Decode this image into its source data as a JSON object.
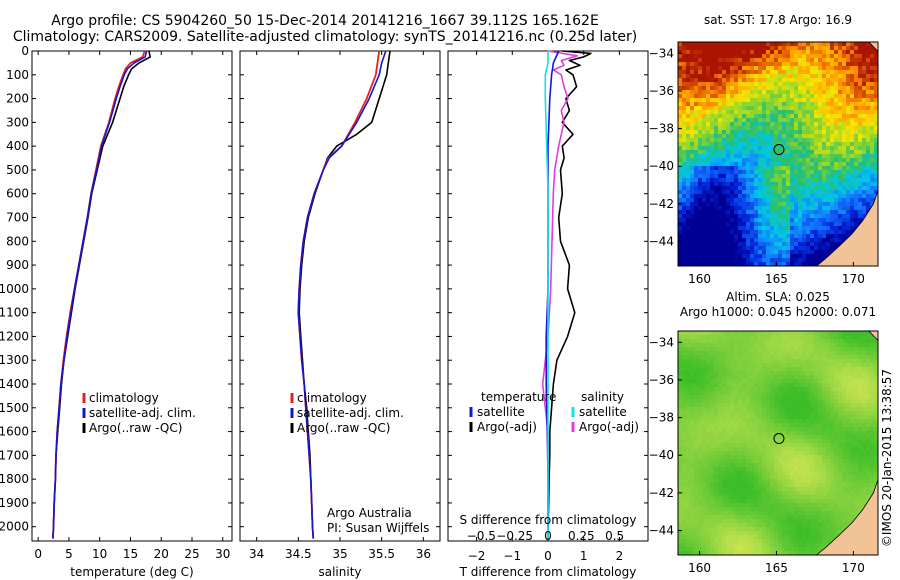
{
  "header": {
    "line1": "Argo profile: CS 5904260_50 15-Dec-2014 20141216_1667 39.112S 165.162E",
    "line2": "Climatology: CARS2009. Satellite-adjusted climatology: synTS_20141216.nc (0.25d later)"
  },
  "timestamp": "©IMOS 20-Jan-2015 13:38:57",
  "credits": {
    "line1": "Argo Australia",
    "line2": "PI: Susan Wijffels"
  },
  "colors": {
    "climatology": "#e8211d",
    "satellite": "#1515d6",
    "argo": "#000000",
    "satellite_s": "#16e0e8",
    "argo_s": "#e03ce0"
  },
  "chart_data": [
    {
      "type": "line",
      "xlabel": "temperature (deg C)",
      "ylabel": "",
      "xlim": [
        -1,
        31.5
      ],
      "ylim": [
        2060,
        0
      ],
      "xticks": [
        0,
        5,
        10,
        15,
        20,
        25,
        30
      ],
      "yticks": [
        0,
        100,
        200,
        300,
        400,
        500,
        600,
        700,
        800,
        900,
        1000,
        1100,
        1200,
        1300,
        1400,
        1500,
        1600,
        1700,
        1800,
        1900,
        2000
      ],
      "legend": [
        "climatology",
        "satellite-adj. clim.",
        "Argo(..raw -QC)"
      ],
      "series": [
        {
          "name": "climatology",
          "y": [
            0,
            25,
            50,
            75,
            100,
            150,
            200,
            300,
            400,
            500,
            600,
            700,
            800,
            900,
            1000,
            1100,
            1200,
            1300,
            1400,
            1500,
            1600,
            1700,
            1800,
            1900,
            2000,
            2050
          ],
          "x": [
            17.3,
            17.0,
            15.0,
            14.2,
            13.8,
            13.1,
            12.5,
            11.5,
            10.2,
            9.4,
            8.6,
            8.0,
            7.3,
            6.6,
            5.9,
            5.2,
            4.6,
            4.1,
            3.7,
            3.4,
            3.1,
            2.9,
            2.8,
            2.6,
            2.5,
            2.4
          ]
        },
        {
          "name": "satellite-adj. clim.",
          "y": [
            0,
            25,
            50,
            75,
            100,
            150,
            200,
            300,
            400,
            500,
            600,
            700,
            800,
            900,
            1000,
            1100,
            1200,
            1300,
            1400,
            1500,
            1600,
            1700,
            1800,
            1900,
            2000,
            2050
          ],
          "x": [
            17.6,
            17.4,
            15.6,
            14.5,
            14.0,
            13.3,
            12.7,
            11.6,
            10.3,
            9.5,
            8.6,
            8.0,
            7.3,
            6.6,
            5.9,
            5.3,
            4.7,
            4.2,
            3.7,
            3.4,
            3.1,
            2.9,
            2.8,
            2.6,
            2.5,
            2.4
          ]
        },
        {
          "name": "Argo(..raw -QC)",
          "y": [
            0,
            25,
            50,
            75,
            100,
            150,
            200,
            300,
            400,
            500,
            600,
            700,
            800,
            900,
            1000,
            1100,
            1200,
            1300,
            1400,
            1500,
            1600,
            1700,
            1800,
            1900,
            2000,
            2050
          ],
          "x": [
            18.0,
            18.2,
            16.4,
            15.2,
            14.7,
            13.9,
            13.3,
            12.1,
            10.5,
            9.6,
            8.7,
            8.1,
            7.4,
            6.7,
            6.0,
            5.4,
            4.8,
            4.2,
            3.8,
            3.5,
            3.2,
            2.9,
            2.8,
            2.6,
            2.5,
            2.4
          ]
        }
      ]
    },
    {
      "type": "line",
      "xlabel": "salinity",
      "ylabel": "",
      "xlim": [
        33.8,
        36.2
      ],
      "ylim": [
        2060,
        0
      ],
      "xticks": [
        34,
        34.5,
        35,
        35.5,
        36
      ],
      "xticklabels": [
        "34",
        "34.5",
        "35",
        "35.5",
        "36"
      ],
      "legend": [
        "climatology",
        "satellite-adj. clim.",
        "Argo(..raw -QC)"
      ],
      "series": [
        {
          "name": "climatology",
          "y": [
            0,
            50,
            100,
            200,
            300,
            400,
            450,
            500,
            600,
            700,
            800,
            900,
            1000,
            1100,
            1200,
            1300,
            1400,
            1500,
            1600,
            1700,
            1800,
            1900,
            2000,
            2050
          ],
          "x": [
            35.47,
            35.45,
            35.43,
            35.32,
            35.18,
            35.02,
            34.86,
            34.8,
            34.69,
            34.61,
            34.56,
            34.53,
            34.51,
            34.5,
            34.52,
            34.54,
            34.57,
            34.59,
            34.61,
            34.63,
            34.65,
            34.66,
            34.67,
            34.68
          ]
        },
        {
          "name": "satellite-adj. clim.",
          "y": [
            0,
            50,
            100,
            200,
            300,
            400,
            450,
            500,
            600,
            700,
            800,
            900,
            1000,
            1100,
            1200,
            1300,
            1400,
            1500,
            1600,
            1700,
            1800,
            1900,
            2000,
            2050
          ],
          "x": [
            35.55,
            35.5,
            35.47,
            35.35,
            35.2,
            35.02,
            34.87,
            34.8,
            34.69,
            34.61,
            34.56,
            34.53,
            34.51,
            34.5,
            34.52,
            34.54,
            34.57,
            34.59,
            34.61,
            34.63,
            34.65,
            34.66,
            34.67,
            34.68
          ]
        },
        {
          "name": "Argo(..raw -QC)",
          "y": [
            0,
            50,
            100,
            200,
            300,
            350,
            400,
            450,
            500,
            600,
            700,
            800,
            900,
            1000,
            1100,
            1200,
            1300,
            1400,
            1500,
            1600,
            1700,
            1800,
            1900,
            2000,
            2050
          ],
          "x": [
            35.6,
            35.58,
            35.56,
            35.47,
            35.38,
            35.2,
            34.96,
            34.85,
            34.8,
            34.7,
            34.62,
            34.57,
            34.54,
            34.52,
            34.51,
            34.53,
            34.55,
            34.57,
            34.6,
            34.62,
            34.64,
            34.65,
            34.66,
            34.67,
            34.68
          ]
        }
      ]
    },
    {
      "type": "line",
      "xlabel": "T difference from climatology",
      "xlabel2": "S difference from climatology",
      "ylabel": "",
      "xlim": [
        -2.8,
        2.8
      ],
      "ylim": [
        2060,
        0
      ],
      "xticks": [
        -2,
        -1,
        0,
        1,
        2
      ],
      "xticks_s": [
        -0.5,
        -0.25,
        0,
        0.25,
        0.5
      ],
      "xticklabels_s": [
        "−0.5",
        "−0.25",
        "0",
        "0.25",
        "0.5"
      ],
      "legend_t_title": "temperature",
      "legend_s_title": "salinity",
      "legend": [
        "satellite",
        "Argo(-adj)",
        "satellite",
        "Argo(-adj)"
      ],
      "series": [
        {
          "name": "satellite",
          "y": [
            0,
            50,
            100,
            200,
            400,
            600,
            800,
            1000,
            1200,
            1400,
            1600,
            1800,
            2000,
            2050
          ],
          "x": [
            0.3,
            0.15,
            0.1,
            0.05,
            0.0,
            0.0,
            0.0,
            0.0,
            -0.05,
            -0.05,
            -0.02,
            0.0,
            0.0,
            0.0
          ]
        },
        {
          "name": "Argo(-adj)",
          "y": [
            0,
            10,
            25,
            40,
            60,
            80,
            100,
            150,
            200,
            250,
            300,
            350,
            400,
            450,
            500,
            600,
            700,
            800,
            900,
            1000,
            1100,
            1150,
            1200,
            1300,
            1400,
            1500,
            1600,
            1700,
            1800,
            1900,
            2000
          ],
          "x": [
            0.4,
            1.2,
            1.0,
            0.6,
            0.9,
            0.5,
            0.7,
            0.8,
            0.5,
            0.6,
            0.4,
            0.7,
            0.4,
            0.45,
            0.35,
            0.4,
            0.3,
            0.35,
            0.6,
            0.55,
            0.75,
            0.65,
            0.55,
            0.25,
            0.15,
            0.1,
            0.05,
            0.05,
            0.03,
            0.02,
            0.0
          ]
        },
        {
          "name": "satellite",
          "y": [
            0,
            50,
            100,
            200,
            400,
            600,
            800,
            1000,
            1200,
            1400,
            1600,
            1800,
            2000,
            2050
          ],
          "x": [
            0.0,
            0.0,
            -0.02,
            -0.02,
            -0.01,
            0.0,
            0.0,
            0.0,
            0.0,
            0.0,
            0.0,
            0.0,
            0.0,
            0.0
          ]
        },
        {
          "name": "Argo(-adj)",
          "y": [
            0,
            20,
            40,
            60,
            80,
            100,
            150,
            200,
            250,
            300,
            350,
            400,
            500,
            600,
            800,
            1000,
            1200,
            1400,
            1500,
            1600,
            1800,
            2000
          ],
          "x": [
            0.0,
            0.22,
            0.1,
            0.12,
            0.04,
            0.1,
            0.12,
            0.15,
            0.1,
            0.12,
            0.1,
            0.08,
            0.05,
            0.04,
            0.03,
            0.02,
            0.0,
            -0.04,
            -0.02,
            0.0,
            0.0,
            0.0
          ]
        }
      ]
    },
    {
      "type": "heatmap",
      "title": "sat. SST: 17.8  Argo: 16.9",
      "xlim": [
        158.6,
        171.6
      ],
      "ylim": [
        -45.3,
        -33.4
      ],
      "xticks": [
        160,
        165,
        170
      ],
      "yticks": [
        -34,
        -36,
        -38,
        -40,
        -42,
        -44
      ],
      "marker": {
        "lon": 165.162,
        "lat": -39.112
      }
    },
    {
      "type": "heatmap",
      "title": "Altim. SLA: 0.025",
      "subtitle": "Argo h1000: 0.045 h2000: 0.071",
      "xlim": [
        158.6,
        171.6
      ],
      "ylim": [
        -45.3,
        -33.4
      ],
      "xticks": [
        160,
        165,
        170
      ],
      "yticks": [
        -34,
        -36,
        -38,
        -40,
        -42,
        -44
      ],
      "marker": {
        "lon": 165.162,
        "lat": -39.112
      }
    }
  ]
}
